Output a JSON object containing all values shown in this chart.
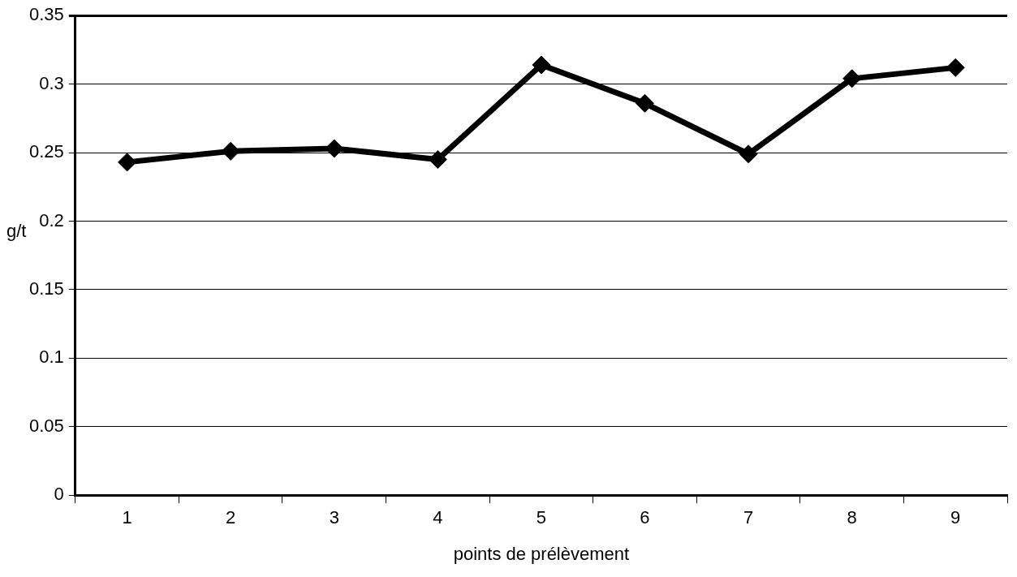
{
  "chart_data": {
    "type": "line",
    "xlabel": "points de prélèvement",
    "ylabel": "g/t",
    "categories": [
      "1",
      "2",
      "3",
      "4",
      "5",
      "6",
      "7",
      "8",
      "9"
    ],
    "series": [
      {
        "color": "#000000",
        "values": [
          0.243,
          0.251,
          0.253,
          0.245,
          0.314,
          0.286,
          0.249,
          0.304,
          0.312
        ]
      }
    ],
    "ylim": [
      0,
      0.35
    ],
    "yticks": [
      0,
      {
        "value": 0.05,
        "label": "0.05"
      },
      {
        "value": 0.1,
        "label": "0.1"
      },
      {
        "value": 0.15,
        "label": "0.15"
      },
      {
        "value": 0.2,
        "label": "0.2"
      },
      {
        "value": 0.25,
        "label": "0.25"
      },
      {
        "value": 0.3,
        "label": "0.3"
      },
      {
        "value": 0.35,
        "label": "0.35"
      }
    ],
    "grid": "y",
    "marker": "diamond",
    "line_style": "solid"
  }
}
